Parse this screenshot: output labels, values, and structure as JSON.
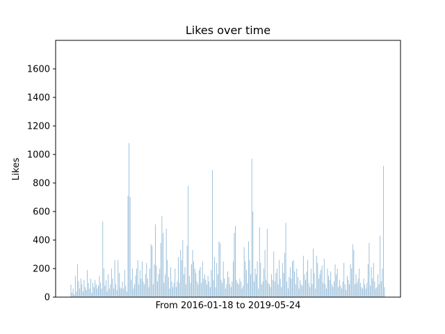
{
  "chart_data": {
    "type": "bar",
    "title": "Likes over time",
    "xlabel": "From 2016-01-18 to 2019-05-24",
    "ylabel": "Likes",
    "ylim": [
      0,
      1800
    ],
    "yticks": [
      0,
      200,
      400,
      600,
      800,
      1000,
      1200,
      1400,
      1600
    ],
    "xticks_shown": false,
    "grid": false,
    "bar_color": "#8fb8d6",
    "values": [
      88,
      30,
      60,
      20,
      150,
      40,
      230,
      110,
      60,
      130,
      90,
      40,
      120,
      70,
      50,
      190,
      100,
      60,
      130,
      30,
      100,
      70,
      120,
      90,
      60,
      80,
      150,
      100,
      60,
      530,
      200,
      80,
      120,
      40,
      160,
      60,
      90,
      200,
      130,
      60,
      260,
      90,
      50,
      260,
      170,
      70,
      60,
      110,
      60,
      190,
      80,
      40,
      710,
      1080,
      700,
      120,
      200,
      60,
      90,
      150,
      200,
      260,
      90,
      190,
      130,
      250,
      110,
      90,
      160,
      240,
      130,
      70,
      200,
      370,
      360,
      90,
      230,
      510,
      220,
      110,
      160,
      200,
      380,
      570,
      450,
      100,
      160,
      480,
      260,
      140,
      60,
      210,
      110,
      70,
      100,
      200,
      70,
      110,
      280,
      100,
      330,
      260,
      400,
      160,
      210,
      90,
      360,
      780,
      150,
      100,
      230,
      330,
      250,
      200,
      170,
      110,
      90,
      190,
      210,
      100,
      250,
      130,
      160,
      120,
      90,
      150,
      110,
      70,
      190,
      890,
      120,
      280,
      70,
      240,
      160,
      390,
      380,
      120,
      100,
      250,
      130,
      60,
      90,
      180,
      140,
      90,
      70,
      110,
      250,
      450,
      500,
      120,
      100,
      90,
      130,
      110,
      60,
      80,
      350,
      250,
      190,
      100,
      390,
      260,
      160,
      970,
      600,
      110,
      200,
      160,
      250,
      60,
      490,
      240,
      90,
      110,
      200,
      330,
      120,
      480,
      100,
      90,
      70,
      160,
      120,
      320,
      110,
      170,
      200,
      90,
      260,
      130,
      70,
      240,
      170,
      310,
      520,
      110,
      60,
      140,
      210,
      130,
      250,
      260,
      180,
      90,
      200,
      140,
      60,
      120,
      90,
      80,
      290,
      160,
      120,
      180,
      260,
      100,
      70,
      200,
      90,
      340,
      170,
      60,
      290,
      240,
      130,
      160,
      190,
      220,
      100,
      270,
      90,
      60,
      200,
      150,
      120,
      180,
      90,
      70,
      110,
      230,
      160,
      200,
      70,
      120,
      80,
      60,
      110,
      240,
      90,
      50,
      150,
      120,
      90,
      230,
      200,
      370,
      330,
      90,
      160,
      100,
      130,
      200,
      100,
      70,
      60,
      130,
      90,
      60,
      100,
      230,
      380,
      80,
      210,
      130,
      240,
      110,
      60,
      70,
      160,
      90,
      430,
      110,
      200,
      920,
      70
    ]
  }
}
